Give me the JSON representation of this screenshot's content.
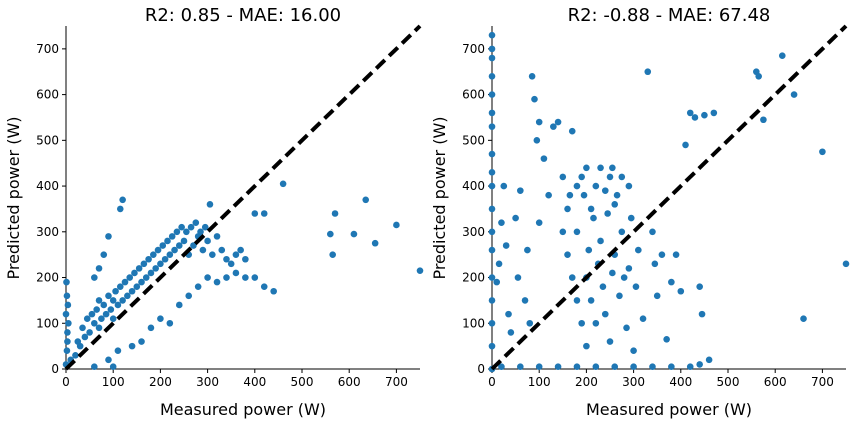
{
  "chart_data": [
    {
      "type": "scatter",
      "title": "R2: 0.85 - MAE: 16.00",
      "xlabel": "Measured power (W)",
      "ylabel": "Predicted power (W)",
      "xlim": [
        0,
        750
      ],
      "ylim": [
        0,
        750
      ],
      "xticks": [
        0,
        100,
        200,
        300,
        400,
        500,
        600,
        700
      ],
      "yticks": [
        0,
        100,
        200,
        300,
        400,
        500,
        600,
        700
      ],
      "grid": false,
      "point_color": "#1f77b4",
      "reference_line": {
        "from": [
          0,
          0
        ],
        "to": [
          750,
          750
        ],
        "style": "dashed",
        "color": "#000000"
      },
      "points": [
        [
          0,
          10
        ],
        [
          2,
          40
        ],
        [
          3,
          80
        ],
        [
          0,
          120
        ],
        [
          2,
          160
        ],
        [
          1,
          190
        ],
        [
          3,
          60
        ],
        [
          5,
          100
        ],
        [
          4,
          140
        ],
        [
          10,
          20
        ],
        [
          20,
          30
        ],
        [
          25,
          60
        ],
        [
          30,
          50
        ],
        [
          35,
          90
        ],
        [
          40,
          70
        ],
        [
          45,
          110
        ],
        [
          50,
          80
        ],
        [
          55,
          120
        ],
        [
          60,
          100
        ],
        [
          65,
          130
        ],
        [
          70,
          90
        ],
        [
          70,
          150
        ],
        [
          75,
          110
        ],
        [
          80,
          140
        ],
        [
          85,
          120
        ],
        [
          90,
          160
        ],
        [
          95,
          130
        ],
        [
          100,
          150
        ],
        [
          100,
          110
        ],
        [
          105,
          170
        ],
        [
          110,
          140
        ],
        [
          115,
          180
        ],
        [
          120,
          150
        ],
        [
          125,
          190
        ],
        [
          130,
          160
        ],
        [
          135,
          200
        ],
        [
          140,
          170
        ],
        [
          145,
          210
        ],
        [
          150,
          180
        ],
        [
          155,
          220
        ],
        [
          160,
          190
        ],
        [
          165,
          230
        ],
        [
          170,
          200
        ],
        [
          175,
          240
        ],
        [
          180,
          210
        ],
        [
          185,
          250
        ],
        [
          190,
          220
        ],
        [
          195,
          260
        ],
        [
          200,
          230
        ],
        [
          205,
          270
        ],
        [
          210,
          240
        ],
        [
          215,
          280
        ],
        [
          220,
          250
        ],
        [
          225,
          290
        ],
        [
          230,
          260
        ],
        [
          235,
          300
        ],
        [
          240,
          270
        ],
        [
          245,
          310
        ],
        [
          250,
          280
        ],
        [
          255,
          300
        ],
        [
          260,
          250
        ],
        [
          265,
          310
        ],
        [
          270,
          270
        ],
        [
          275,
          320
        ],
        [
          280,
          290
        ],
        [
          285,
          300
        ],
        [
          290,
          260
        ],
        [
          295,
          310
        ],
        [
          300,
          280
        ],
        [
          305,
          360
        ],
        [
          310,
          250
        ],
        [
          320,
          290
        ],
        [
          330,
          260
        ],
        [
          340,
          240
        ],
        [
          350,
          230
        ],
        [
          360,
          250
        ],
        [
          370,
          260
        ],
        [
          380,
          240
        ],
        [
          120,
          370
        ],
        [
          115,
          350
        ],
        [
          90,
          290
        ],
        [
          80,
          250
        ],
        [
          60,
          200
        ],
        [
          70,
          220
        ],
        [
          140,
          50
        ],
        [
          160,
          60
        ],
        [
          180,
          90
        ],
        [
          200,
          110
        ],
        [
          220,
          100
        ],
        [
          240,
          140
        ],
        [
          260,
          160
        ],
        [
          280,
          180
        ],
        [
          300,
          200
        ],
        [
          320,
          190
        ],
        [
          340,
          200
        ],
        [
          360,
          210
        ],
        [
          380,
          200
        ],
        [
          400,
          200
        ],
        [
          420,
          180
        ],
        [
          440,
          170
        ],
        [
          460,
          405
        ],
        [
          400,
          340
        ],
        [
          420,
          340
        ],
        [
          560,
          295
        ],
        [
          565,
          250
        ],
        [
          570,
          340
        ],
        [
          610,
          295
        ],
        [
          635,
          370
        ],
        [
          655,
          275
        ],
        [
          700,
          315
        ],
        [
          750,
          215
        ],
        [
          90,
          20
        ],
        [
          110,
          40
        ],
        [
          60,
          5
        ],
        [
          100,
          5
        ]
      ]
    },
    {
      "type": "scatter",
      "title": "R2: -0.88 - MAE: 67.48",
      "xlabel": "Measured power (W)",
      "ylabel": "Predicted power (W)",
      "xlim": [
        0,
        750
      ],
      "ylim": [
        0,
        750
      ],
      "xticks": [
        0,
        100,
        200,
        300,
        400,
        500,
        600,
        700
      ],
      "yticks": [
        0,
        100,
        200,
        300,
        400,
        500,
        600,
        700
      ],
      "grid": false,
      "point_color": "#1f77b4",
      "reference_line": {
        "from": [
          0,
          0
        ],
        "to": [
          750,
          750
        ],
        "style": "dashed",
        "color": "#000000"
      },
      "points": [
        [
          0,
          730
        ],
        [
          0,
          700
        ],
        [
          0,
          680
        ],
        [
          0,
          640
        ],
        [
          0,
          600
        ],
        [
          0,
          560
        ],
        [
          0,
          530
        ],
        [
          0,
          470
        ],
        [
          0,
          430
        ],
        [
          0,
          400
        ],
        [
          0,
          350
        ],
        [
          0,
          300
        ],
        [
          0,
          260
        ],
        [
          0,
          200
        ],
        [
          0,
          150
        ],
        [
          0,
          100
        ],
        [
          0,
          50
        ],
        [
          0,
          0
        ],
        [
          10,
          190
        ],
        [
          15,
          230
        ],
        [
          20,
          320
        ],
        [
          25,
          400
        ],
        [
          30,
          270
        ],
        [
          35,
          120
        ],
        [
          40,
          80
        ],
        [
          50,
          330
        ],
        [
          55,
          200
        ],
        [
          60,
          390
        ],
        [
          70,
          150
        ],
        [
          75,
          260
        ],
        [
          80,
          100
        ],
        [
          85,
          640
        ],
        [
          90,
          590
        ],
        [
          95,
          500
        ],
        [
          100,
          320
        ],
        [
          100,
          540
        ],
        [
          110,
          460
        ],
        [
          120,
          380
        ],
        [
          130,
          530
        ],
        [
          140,
          540
        ],
        [
          150,
          420
        ],
        [
          160,
          350
        ],
        [
          170,
          520
        ],
        [
          180,
          300
        ],
        [
          190,
          420
        ],
        [
          195,
          380
        ],
        [
          200,
          200
        ],
        [
          205,
          260
        ],
        [
          210,
          150
        ],
        [
          215,
          330
        ],
        [
          220,
          100
        ],
        [
          225,
          230
        ],
        [
          230,
          280
        ],
        [
          235,
          180
        ],
        [
          240,
          120
        ],
        [
          245,
          340
        ],
        [
          250,
          60
        ],
        [
          255,
          210
        ],
        [
          260,
          250
        ],
        [
          265,
          380
        ],
        [
          270,
          160
        ],
        [
          275,
          300
        ],
        [
          280,
          200
        ],
        [
          285,
          90
        ],
        [
          290,
          220
        ],
        [
          295,
          330
        ],
        [
          300,
          40
        ],
        [
          305,
          180
        ],
        [
          310,
          260
        ],
        [
          320,
          110
        ],
        [
          330,
          650
        ],
        [
          340,
          300
        ],
        [
          345,
          230
        ],
        [
          350,
          160
        ],
        [
          360,
          250
        ],
        [
          370,
          65
        ],
        [
          380,
          190
        ],
        [
          390,
          250
        ],
        [
          400,
          170
        ],
        [
          410,
          490
        ],
        [
          420,
          560
        ],
        [
          430,
          550
        ],
        [
          440,
          180
        ],
        [
          445,
          120
        ],
        [
          450,
          555
        ],
        [
          460,
          20
        ],
        [
          470,
          560
        ],
        [
          560,
          650
        ],
        [
          565,
          640
        ],
        [
          575,
          545
        ],
        [
          615,
          685
        ],
        [
          640,
          600
        ],
        [
          660,
          110
        ],
        [
          700,
          475
        ],
        [
          750,
          230
        ],
        [
          20,
          5
        ],
        [
          60,
          5
        ],
        [
          100,
          5
        ],
        [
          140,
          5
        ],
        [
          180,
          5
        ],
        [
          220,
          5
        ],
        [
          260,
          5
        ],
        [
          300,
          5
        ],
        [
          340,
          5
        ],
        [
          380,
          5
        ],
        [
          420,
          5
        ],
        [
          440,
          10
        ],
        [
          150,
          300
        ],
        [
          160,
          250
        ],
        [
          170,
          200
        ],
        [
          180,
          150
        ],
        [
          190,
          100
        ],
        [
          200,
          50
        ],
        [
          210,
          350
        ],
        [
          220,
          400
        ],
        [
          230,
          440
        ],
        [
          240,
          390
        ],
        [
          250,
          420
        ],
        [
          260,
          360
        ],
        [
          200,
          440
        ],
        [
          180,
          400
        ],
        [
          165,
          380
        ],
        [
          255,
          440
        ],
        [
          275,
          420
        ],
        [
          290,
          400
        ]
      ]
    }
  ]
}
